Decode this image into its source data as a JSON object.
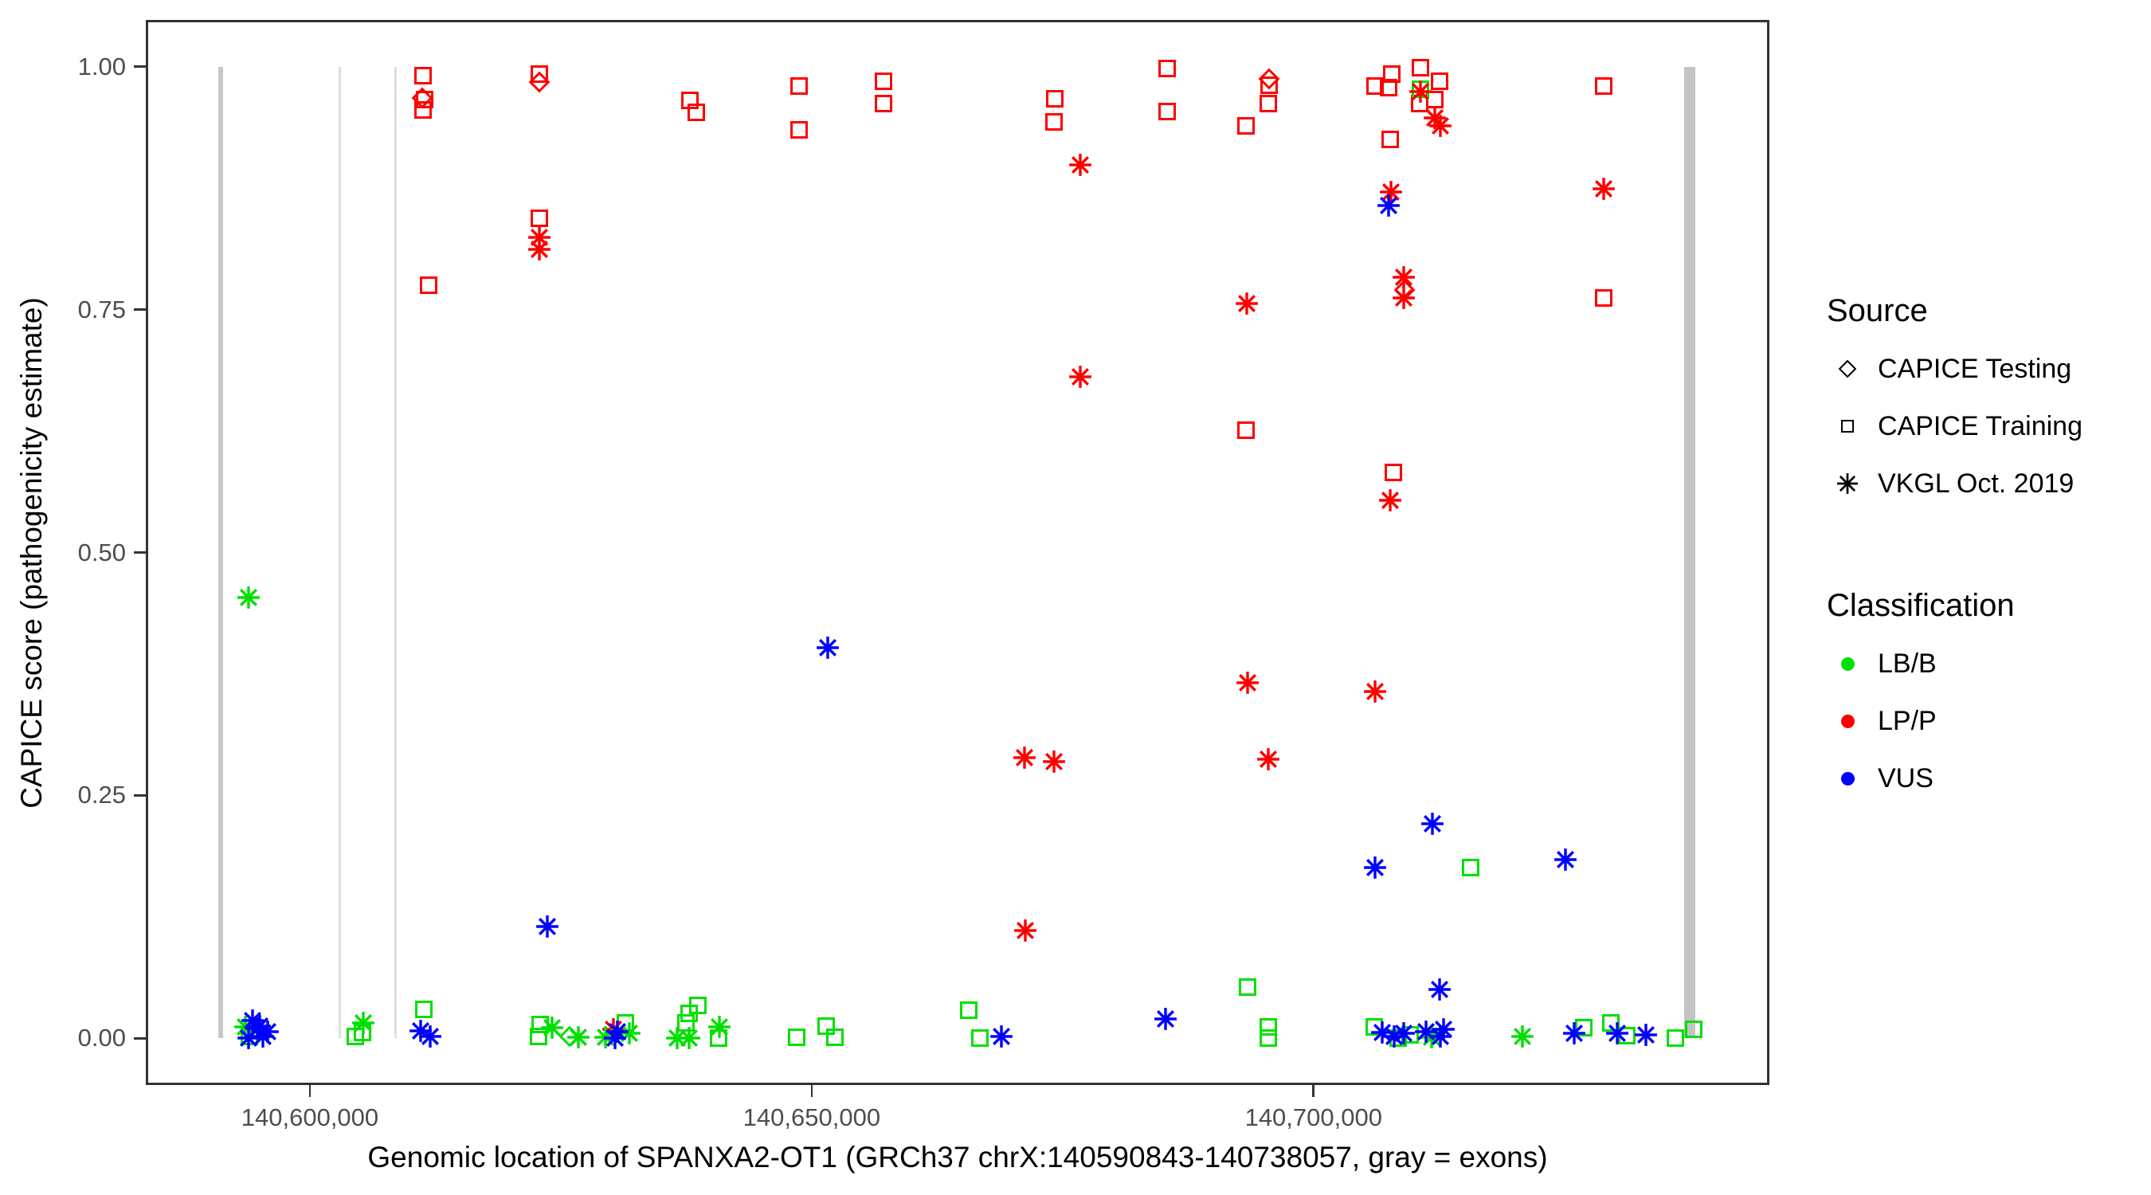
{
  "figure": {
    "x_title": "Genomic location of SPANXA2-OT1 (GRCh37 chrX:140590843-140738057, gray = exons)",
    "y_title": "CAPICE score (pathogenicity estimate)"
  },
  "axes": {
    "x": {
      "domain": [
        140583650,
        140745420
      ],
      "ticks": [
        {
          "pos": 140600000,
          "label": "140,600,000"
        },
        {
          "pos": 140650000,
          "label": "140,650,000"
        },
        {
          "pos": 140700000,
          "label": "140,700,000"
        }
      ]
    },
    "y": {
      "domain": [
        -0.048,
        1.048
      ],
      "ticks": [
        {
          "score": 0.0,
          "label": "0.00"
        },
        {
          "score": 0.25,
          "label": "0.25"
        },
        {
          "score": 0.5,
          "label": "0.50"
        },
        {
          "score": 0.75,
          "label": "0.75"
        },
        {
          "score": 1.0,
          "label": "1.00"
        }
      ]
    }
  },
  "legend": {
    "source": {
      "title": "Source",
      "items": [
        {
          "label": "CAPICE Testing",
          "marker": "diamond"
        },
        {
          "label": "CAPICE Training",
          "marker": "square"
        },
        {
          "label": "VKGL Oct. 2019",
          "marker": "asterisk"
        }
      ]
    },
    "classification": {
      "title": "Classification",
      "items": [
        {
          "label": "LB/B",
          "color": "#00E000"
        },
        {
          "label": "LP/P",
          "color": "#FF0000"
        },
        {
          "label": "VUS",
          "color": "#0000FF"
        }
      ]
    }
  },
  "colors": {
    "LB/B": "#00E000",
    "LP/P": "#FF0000",
    "VUS": "#0000FF"
  },
  "exons": [
    {
      "start": 140590843,
      "end": 140591350,
      "color": "#C8C8C8"
    },
    {
      "start": 140602820,
      "end": 140603060,
      "color": "#DEDEDE"
    },
    {
      "start": 140608400,
      "end": 140608640,
      "color": "#DEDEDE"
    },
    {
      "start": 140736900,
      "end": 140738057,
      "color": "#C4C4C4"
    }
  ],
  "chart_data": {
    "type": "scatter",
    "title": "",
    "xlabel": "Genomic location of SPANXA2-OT1 (GRCh37 chrX:140590843-140738057, gray = exons)",
    "ylabel": "CAPICE score (pathogenicity estimate)",
    "xlim": [
      140583650,
      140745420
    ],
    "ylim": [
      0,
      1
    ],
    "grid": false,
    "legend_position": "right",
    "series": [
      {
        "source": "CAPICE Testing",
        "classification": "LP/P",
        "marker": "diamond",
        "points": [
          [
            140611190,
            0.968
          ],
          [
            140622860,
            0.984
          ],
          [
            140695560,
            0.987
          ],
          [
            140709050,
            0.77
          ]
        ]
      },
      {
        "source": "CAPICE Testing",
        "classification": "LB/B",
        "marker": "diamond",
        "points": [
          [
            140625880,
            0.002
          ]
        ]
      },
      {
        "source": "CAPICE Training",
        "classification": "LP/P",
        "marker": "square",
        "points": [
          [
            140611270,
            0.991
          ],
          [
            140611430,
            0.966
          ],
          [
            140611270,
            0.955
          ],
          [
            140611830,
            0.775
          ],
          [
            140622860,
            0.992
          ],
          [
            140622860,
            0.844
          ],
          [
            140637860,
            0.965
          ],
          [
            140638500,
            0.953
          ],
          [
            140648730,
            0.98
          ],
          [
            140648730,
            0.935
          ],
          [
            140657140,
            0.985
          ],
          [
            140657140,
            0.962
          ],
          [
            140674210,
            0.967
          ],
          [
            140674130,
            0.943
          ],
          [
            140685400,
            0.998
          ],
          [
            140685400,
            0.954
          ],
          [
            140693260,
            0.939
          ],
          [
            140693260,
            0.626
          ],
          [
            140695560,
            0.981
          ],
          [
            140695480,
            0.962
          ],
          [
            140706120,
            0.98
          ],
          [
            140707950,
            0.582
          ],
          [
            140707790,
            0.992
          ],
          [
            140707470,
            0.978
          ],
          [
            140707630,
            0.925
          ],
          [
            140710640,
            0.999
          ],
          [
            140712540,
            0.985
          ],
          [
            140712060,
            0.966
          ],
          [
            140710560,
            0.962
          ],
          [
            140728890,
            0.98
          ],
          [
            140728890,
            0.762
          ]
        ]
      },
      {
        "source": "CAPICE Training",
        "classification": "LB/B",
        "marker": "square",
        "points": [
          [
            140593970,
            0.002
          ],
          [
            140604520,
            0.002
          ],
          [
            140605240,
            0.006
          ],
          [
            140611350,
            0.03
          ],
          [
            140622780,
            0.002
          ],
          [
            140622940,
            0.014
          ],
          [
            140631430,
            0.016
          ],
          [
            140638650,
            0.034
          ],
          [
            140637780,
            0.026
          ],
          [
            140637460,
            0.016
          ],
          [
            140640720,
            0.0
          ],
          [
            140648490,
            0.001
          ],
          [
            140651430,
            0.013
          ],
          [
            140652310,
            0.001
          ],
          [
            140665640,
            0.029
          ],
          [
            140666750,
            0.0
          ],
          [
            140693420,
            0.053
          ],
          [
            140695480,
            0.012
          ],
          [
            140695480,
            0.0
          ],
          [
            140706040,
            0.012
          ],
          [
            140708420,
            0.0
          ],
          [
            140709610,
            0.004
          ],
          [
            140715650,
            0.176
          ],
          [
            140710640,
            0.977
          ],
          [
            140726910,
            0.011
          ],
          [
            140729610,
            0.016
          ],
          [
            140731200,
            0.003
          ],
          [
            140736040,
            0.0
          ],
          [
            140737870,
            0.009
          ]
        ]
      },
      {
        "source": "VKGL Oct. 2019",
        "classification": "LP/P",
        "marker": "asterisk",
        "points": [
          [
            140622860,
            0.824
          ],
          [
            140622860,
            0.812
          ],
          [
            140676750,
            0.899
          ],
          [
            140676750,
            0.681
          ],
          [
            140693340,
            0.756
          ],
          [
            140693420,
            0.366
          ],
          [
            140695480,
            0.287
          ],
          [
            140671200,
            0.289
          ],
          [
            140674130,
            0.285
          ],
          [
            140671280,
            0.111
          ],
          [
            140706120,
            0.357
          ],
          [
            140707630,
            0.554
          ],
          [
            140707710,
            0.871
          ],
          [
            140708970,
            0.783
          ],
          [
            140708970,
            0.762
          ],
          [
            140710640,
            0.974
          ],
          [
            140712060,
            0.947
          ],
          [
            140712620,
            0.939
          ],
          [
            140728890,
            0.874
          ],
          [
            140630240,
            0.009
          ]
        ]
      },
      {
        "source": "VKGL Oct. 2019",
        "classification": "LB/B",
        "marker": "asterisk",
        "points": [
          [
            140593890,
            0.454
          ],
          [
            140593570,
            0.012
          ],
          [
            140605320,
            0.016
          ],
          [
            140624130,
            0.011
          ],
          [
            140626750,
            0.001
          ],
          [
            140629450,
            0.001
          ],
          [
            140631830,
            0.005
          ],
          [
            140636590,
            0.0
          ],
          [
            140637780,
            0.0
          ],
          [
            140640800,
            0.012
          ],
          [
            140711750,
            0.001
          ],
          [
            140720800,
            0.002
          ]
        ]
      },
      {
        "source": "VKGL Oct. 2019",
        "classification": "VUS",
        "marker": "asterisk",
        "points": [
          [
            140651590,
            0.402
          ],
          [
            140623650,
            0.115
          ],
          [
            140707470,
            0.857
          ],
          [
            140711830,
            0.221
          ],
          [
            140706120,
            0.176
          ],
          [
            140725090,
            0.184
          ],
          [
            140712540,
            0.05
          ],
          [
            140594290,
            0.018
          ],
          [
            140594760,
            0.01
          ],
          [
            140595320,
            0.002
          ],
          [
            140595790,
            0.007
          ],
          [
            140593890,
            0.0
          ],
          [
            140595000,
            0.013
          ],
          [
            140611030,
            0.008
          ],
          [
            140611980,
            0.002
          ],
          [
            140630640,
            0.007
          ],
          [
            140630400,
            0.0
          ],
          [
            140668890,
            0.002
          ],
          [
            140685240,
            0.02
          ],
          [
            140706830,
            0.006
          ],
          [
            140708020,
            0.002
          ],
          [
            140708970,
            0.005
          ],
          [
            140711190,
            0.007
          ],
          [
            140712940,
            0.009
          ],
          [
            140712620,
            0.002
          ],
          [
            140725960,
            0.005
          ],
          [
            140730250,
            0.005
          ],
          [
            140733100,
            0.004
          ]
        ]
      }
    ]
  }
}
